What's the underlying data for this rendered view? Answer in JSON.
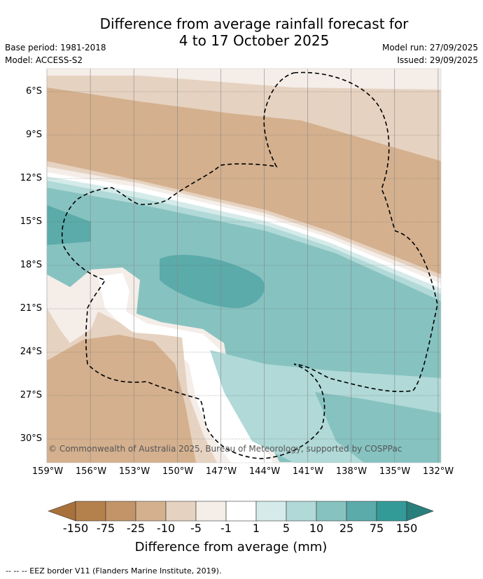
{
  "header": {
    "title_line1": "Difference from average rainfall forecast for",
    "title_line2": "4 to 17 October 2025",
    "base_period": "Base period: 1981-2018",
    "model": "Model: ACCESS-S2",
    "model_run": "Model run: 27/09/2025",
    "issued": "Issued: 29/09/2025"
  },
  "map": {
    "lat_labels": [
      "6°S",
      "9°S",
      "12°S",
      "15°S",
      "18°S",
      "21°S",
      "24°S",
      "27°S",
      "30°S"
    ],
    "lon_labels": [
      "159°W",
      "156°W",
      "153°W",
      "150°W",
      "147°W",
      "144°W",
      "141°W",
      "138°W",
      "135°W",
      "132°W"
    ],
    "copyright": "© Commonwealth of Australia 2025, Bureau of Meteorology, supported by COSPPac"
  },
  "colorbar": {
    "ticks": [
      "-150",
      "-75",
      "-25",
      "-10",
      "-5",
      "-1",
      "1",
      "5",
      "10",
      "25",
      "75",
      "150"
    ],
    "colors": [
      "#a8703a",
      "#b4804c",
      "#c29468",
      "#d4b08e",
      "#e6d2c0",
      "#f4ede8",
      "#ffffff",
      "#d4ebea",
      "#b0d9d7",
      "#86c2c0",
      "#5aabaa",
      "#339a97",
      "#2a7f7c"
    ],
    "label": "Difference from average (mm)"
  },
  "footer": {
    "legend": "--  --  -- EEZ border V11 (Flanders Marine Institute, 2019)."
  }
}
